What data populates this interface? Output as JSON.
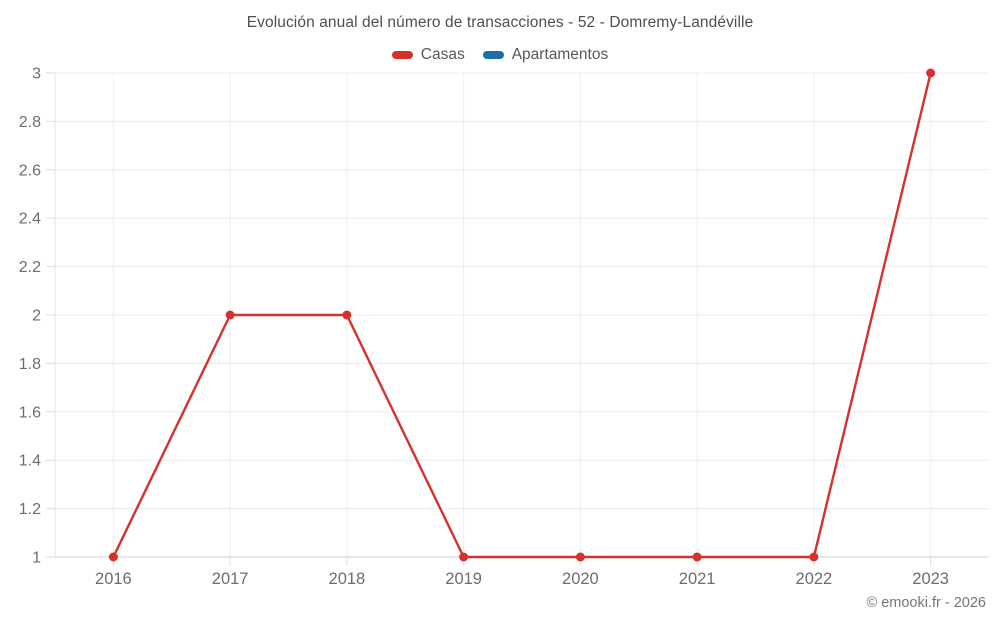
{
  "footer": {
    "copyright": "© emooki.fr - 2026"
  },
  "chart_data": {
    "type": "line",
    "title": "Evolución anual del número de transacciones - 52 - Domremy-Landéville",
    "categories": [
      "2016",
      "2017",
      "2018",
      "2019",
      "2020",
      "2021",
      "2022",
      "2023"
    ],
    "series": [
      {
        "name": "Casas",
        "color": "#d5322e",
        "values": [
          1,
          2,
          2,
          1,
          1,
          1,
          1,
          3
        ]
      },
      {
        "name": "Apartamentos",
        "color": "#1d6fa5",
        "values": []
      }
    ],
    "xlabel": "",
    "ylabel": "",
    "ylim": [
      1,
      3
    ],
    "y_ticks": [
      1,
      1.2,
      1.4,
      1.6,
      1.8,
      2,
      2.2,
      2.4,
      2.6,
      2.8,
      3
    ],
    "grid": true,
    "legend_position": "top",
    "marker": "circle"
  }
}
